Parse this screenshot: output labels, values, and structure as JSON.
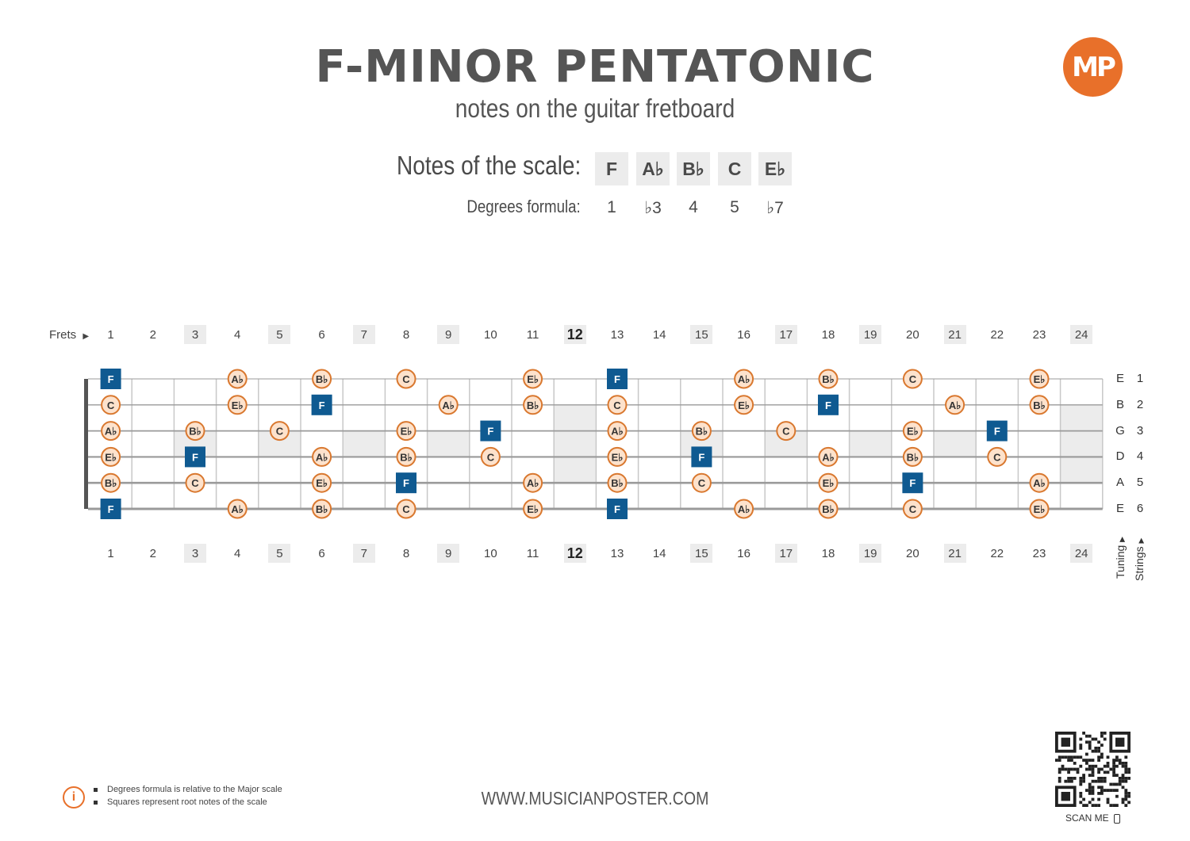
{
  "title": "F-MINOR PENTATONIC",
  "subtitle": "notes on the guitar fretboard",
  "logo": "MP",
  "scale": {
    "notes_label": "Notes of the scale:",
    "notes": [
      "F",
      "A♭",
      "B♭",
      "C",
      "E♭"
    ],
    "degrees_label": "Degrees formula:",
    "degrees": [
      "1",
      "♭3",
      "4",
      "5",
      "♭7"
    ]
  },
  "fretboard": {
    "frets_label": "Frets",
    "fret_numbers": [
      "1",
      "2",
      "3",
      "4",
      "5",
      "6",
      "7",
      "8",
      "9",
      "10",
      "11",
      "12",
      "13",
      "14",
      "15",
      "16",
      "17",
      "18",
      "19",
      "20",
      "21",
      "22",
      "23",
      "24"
    ],
    "shaded_frets": [
      3,
      5,
      7,
      9,
      15,
      17,
      19,
      21,
      24
    ],
    "bold_fret": 12,
    "strings": [
      {
        "tuning": "E",
        "number": "1"
      },
      {
        "tuning": "B",
        "number": "2"
      },
      {
        "tuning": "G",
        "number": "3"
      },
      {
        "tuning": "D",
        "number": "4"
      },
      {
        "tuning": "A",
        "number": "5"
      },
      {
        "tuning": "E",
        "number": "6"
      }
    ],
    "tuning_label": "Tuning",
    "strings_label": "Strings",
    "notes": [
      {
        "string": 1,
        "fret": 1,
        "note": "F",
        "root": true
      },
      {
        "string": 1,
        "fret": 4,
        "note": "A♭"
      },
      {
        "string": 1,
        "fret": 6,
        "note": "B♭"
      },
      {
        "string": 1,
        "fret": 8,
        "note": "C"
      },
      {
        "string": 1,
        "fret": 11,
        "note": "E♭"
      },
      {
        "string": 1,
        "fret": 13,
        "note": "F",
        "root": true
      },
      {
        "string": 1,
        "fret": 16,
        "note": "A♭"
      },
      {
        "string": 1,
        "fret": 18,
        "note": "B♭"
      },
      {
        "string": 1,
        "fret": 20,
        "note": "C"
      },
      {
        "string": 1,
        "fret": 23,
        "note": "E♭"
      },
      {
        "string": 2,
        "fret": 1,
        "note": "C"
      },
      {
        "string": 2,
        "fret": 4,
        "note": "E♭"
      },
      {
        "string": 2,
        "fret": 6,
        "note": "F",
        "root": true
      },
      {
        "string": 2,
        "fret": 9,
        "note": "A♭"
      },
      {
        "string": 2,
        "fret": 11,
        "note": "B♭"
      },
      {
        "string": 2,
        "fret": 13,
        "note": "C"
      },
      {
        "string": 2,
        "fret": 16,
        "note": "E♭"
      },
      {
        "string": 2,
        "fret": 18,
        "note": "F",
        "root": true
      },
      {
        "string": 2,
        "fret": 21,
        "note": "A♭"
      },
      {
        "string": 2,
        "fret": 23,
        "note": "B♭"
      },
      {
        "string": 3,
        "fret": 1,
        "note": "A♭"
      },
      {
        "string": 3,
        "fret": 3,
        "note": "B♭"
      },
      {
        "string": 3,
        "fret": 5,
        "note": "C"
      },
      {
        "string": 3,
        "fret": 8,
        "note": "E♭"
      },
      {
        "string": 3,
        "fret": 10,
        "note": "F",
        "root": true
      },
      {
        "string": 3,
        "fret": 13,
        "note": "A♭"
      },
      {
        "string": 3,
        "fret": 15,
        "note": "B♭"
      },
      {
        "string": 3,
        "fret": 17,
        "note": "C"
      },
      {
        "string": 3,
        "fret": 20,
        "note": "E♭"
      },
      {
        "string": 3,
        "fret": 22,
        "note": "F",
        "root": true
      },
      {
        "string": 4,
        "fret": 1,
        "note": "E♭"
      },
      {
        "string": 4,
        "fret": 3,
        "note": "F",
        "root": true
      },
      {
        "string": 4,
        "fret": 6,
        "note": "A♭"
      },
      {
        "string": 4,
        "fret": 8,
        "note": "B♭"
      },
      {
        "string": 4,
        "fret": 10,
        "note": "C"
      },
      {
        "string": 4,
        "fret": 13,
        "note": "E♭"
      },
      {
        "string": 4,
        "fret": 15,
        "note": "F",
        "root": true
      },
      {
        "string": 4,
        "fret": 18,
        "note": "A♭"
      },
      {
        "string": 4,
        "fret": 20,
        "note": "B♭"
      },
      {
        "string": 4,
        "fret": 22,
        "note": "C"
      },
      {
        "string": 5,
        "fret": 1,
        "note": "B♭"
      },
      {
        "string": 5,
        "fret": 3,
        "note": "C"
      },
      {
        "string": 5,
        "fret": 6,
        "note": "E♭"
      },
      {
        "string": 5,
        "fret": 8,
        "note": "F",
        "root": true
      },
      {
        "string": 5,
        "fret": 11,
        "note": "A♭"
      },
      {
        "string": 5,
        "fret": 13,
        "note": "B♭"
      },
      {
        "string": 5,
        "fret": 15,
        "note": "C"
      },
      {
        "string": 5,
        "fret": 18,
        "note": "E♭"
      },
      {
        "string": 5,
        "fret": 20,
        "note": "F",
        "root": true
      },
      {
        "string": 5,
        "fret": 23,
        "note": "A♭"
      },
      {
        "string": 6,
        "fret": 1,
        "note": "F",
        "root": true
      },
      {
        "string": 6,
        "fret": 4,
        "note": "A♭"
      },
      {
        "string": 6,
        "fret": 6,
        "note": "B♭"
      },
      {
        "string": 6,
        "fret": 8,
        "note": "C"
      },
      {
        "string": 6,
        "fret": 11,
        "note": "E♭"
      },
      {
        "string": 6,
        "fret": 13,
        "note": "F",
        "root": true
      },
      {
        "string": 6,
        "fret": 16,
        "note": "A♭"
      },
      {
        "string": 6,
        "fret": 18,
        "note": "B♭"
      },
      {
        "string": 6,
        "fret": 20,
        "note": "C"
      },
      {
        "string": 6,
        "fret": 23,
        "note": "E♭"
      }
    ]
  },
  "info": {
    "lines": [
      "Degrees formula is relative to the Major scale",
      "Squares represent root notes of the scale"
    ]
  },
  "footer_url": "WWW.MUSICIANPOSTER.COM",
  "scan_me": "SCAN ME",
  "colors": {
    "root_fill": "#0f5a91",
    "note_stroke": "#d9782f",
    "note_fill": "#fde2cc",
    "accent": "#e8702a"
  }
}
